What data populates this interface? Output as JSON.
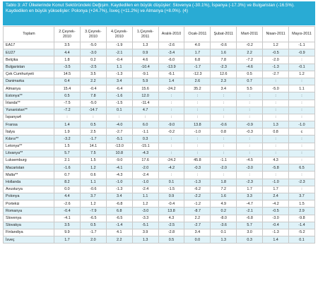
{
  "caption": "Tablo 3:  AT Ülkelerinde Konut Sektöründeki Değişim. Kaydedilen en büyük düşüşler: Slovenya (-30.1%), İspanya (-17.3%) ve Bulgaristan (-16.5%). Kaydedilen en büyük yükselişler: Polonya (+24.7%), İsveç (+11.2%) ve Almanya (+8.0%). (4)",
  "headers": [
    "Toplam",
    "2.Çeyrek-2010",
    "3.Çeyrek-2010",
    "4.Çeyrek-2010",
    "1.Çeyrek-2011",
    "Aralık-2010",
    "Ocak-2011",
    "Şubat-2011",
    "Mart-2011",
    "Nisan-2011",
    "Mayıs-2011"
  ],
  "rows": [
    [
      "EA17",
      "3.5",
      "-5.0",
      "-1.9",
      "1.3",
      "-2.6",
      "4.0",
      "-0.6",
      "-0.2",
      "1.2",
      "-1.1"
    ],
    [
      "EU27",
      "4.4",
      "-3.0",
      "-2.1",
      "0.9",
      "-3.4",
      "1.7",
      "1.6",
      "2.2",
      "-0.5",
      "-0.9"
    ],
    [
      "Belçika",
      "1.8",
      "0.2",
      "-0.4",
      "4.6",
      "-6.0",
      "6.8",
      "7.8",
      "-7.2",
      "-2.0",
      ":"
    ],
    [
      "Bulgaristan",
      "-3.5",
      "-2.5",
      "1.1",
      "-10.4",
      "-13.9",
      "-1.7",
      "-2.3",
      "-4.6",
      "-1.3",
      "-0.1"
    ],
    [
      "Çek Cumhuriyeti",
      "14.5",
      "3.5",
      "-1.3",
      "-9.1",
      "-6.1",
      "-12.3",
      "12.6",
      "0.5",
      "-2.7",
      "1.2"
    ],
    [
      "Danimarka",
      "0.4",
      "2.2",
      "3.4",
      "5.9",
      "1.4",
      "2.6",
      "2.3",
      "0.7",
      ":",
      ":"
    ],
    [
      "Almanya",
      "15.4",
      "-0.4",
      "-6.4",
      "15.6",
      "-24.2",
      "35.2",
      "3.4",
      "5.5",
      "-5.0",
      "1.1"
    ],
    [
      "Estonya**",
      "0.5",
      "7.8",
      "-1.6",
      "12.0",
      ":",
      ":",
      ":",
      ":",
      ":",
      ":"
    ],
    [
      "İrlanda**",
      "-7.5",
      "-5.0",
      "-1.5",
      "-11.4",
      ":",
      ":",
      ":",
      ":",
      ":",
      ":"
    ],
    [
      "Yunanistan**",
      "-7.2",
      "-14.7",
      "0.1",
      "4.7",
      ":",
      ":",
      ":",
      ":",
      ":",
      ":"
    ],
    [
      "İspanya4",
      ":",
      ":",
      ":",
      ":",
      ":",
      ":",
      ":",
      ":",
      ":",
      ":"
    ],
    [
      "Fransa",
      "1.4",
      "0.5",
      "-4.0",
      "6.0",
      "-9.0",
      "13.8",
      "-0.6",
      "-0.9",
      "1.3",
      "-1.0"
    ],
    [
      "İtalya",
      "1.9",
      "2.5",
      "-2.7",
      "-1.1",
      "-0.2",
      "-1.0",
      "0.8",
      "-0.3",
      "0.8",
      "c"
    ],
    [
      "Kıbrıs**",
      "-3.2",
      "-1.7",
      "-5.1",
      "0.3",
      ":",
      ":",
      ":",
      ":",
      ":",
      ":"
    ],
    [
      "Letonya**",
      "1.5",
      "14.1",
      "-13.0",
      "-15.1",
      ":",
      ":",
      ":",
      ":",
      ":",
      ":"
    ],
    [
      "Litvanya**",
      "5.7",
      "7.5",
      "10.8",
      "-4.3",
      ":",
      ":",
      ":",
      ":",
      ":",
      ":"
    ],
    [
      "Luksemburg",
      "2.1",
      "1.5",
      "-9.0",
      "17.6",
      "-24.2",
      "45.8",
      "-1.1",
      "-4.5",
      "4.3",
      ":"
    ],
    [
      "Macaristan",
      "-1.6",
      "1.2",
      "-4.1",
      "-2.0",
      "-4.2",
      "-0.3",
      "-2.0",
      "-3.0",
      "-5.8",
      "6.5"
    ],
    [
      "Malta**",
      "0.7",
      "0.6",
      "-4.3",
      "-2.4",
      ":",
      ":",
      ":",
      ":",
      ":",
      ":"
    ],
    [
      "Hollanda",
      "8.2",
      "1.1",
      "-1.0",
      "-1.0",
      "0.1",
      "-1.3",
      "1.8",
      "-2.3",
      "-1.0",
      "-2.3"
    ],
    [
      "Avusturya",
      "0.0",
      "-0.6",
      "-1.3",
      "-2.4",
      "-1.5",
      "-6.2",
      "7.2",
      "1.7",
      "1.7",
      ":"
    ],
    [
      "Polonya",
      "4.4",
      "3.7",
      "3.4",
      "1.1",
      "0.9",
      "-2.2",
      "1.6",
      "3.3",
      "2.4",
      "3.7"
    ],
    [
      "Portekiz",
      "-2.6",
      "1.2",
      "-6.8",
      "1.2",
      "-0.4",
      "-1.2",
      "4.9",
      "-4.7",
      "-4.2",
      "1.5"
    ],
    [
      "Romanya",
      "-0.4",
      "-7.9",
      "6.8",
      "-3.0",
      "13.8",
      "-8.7",
      "0.2",
      "-2.1",
      "-0.5",
      "2.9"
    ],
    [
      "Slovenya",
      "-4.1",
      "-6.5",
      "-6.5",
      "-3.3",
      "4.3",
      "2.2",
      "-8.0",
      "-6.8",
      "-3.0",
      "-9.8"
    ],
    [
      "Slovakya",
      "3.5",
      "0.5",
      "-1.4",
      "-5.1",
      "-2.5",
      "-2.7",
      "-3.6",
      "5.7",
      "-0.4",
      "-1.4"
    ],
    [
      "Finlandiya",
      "9.9",
      "-1.7",
      "4.1",
      "3.9",
      "-2.8",
      "3.4",
      "0.1",
      "3.0",
      "-1.3",
      "-5.2"
    ],
    [
      "İsveç",
      "1.7",
      "2.0",
      "2.2",
      "1.3",
      "0.5",
      "0.0",
      "1.3",
      "0.3",
      "1.4",
      "0.1"
    ]
  ]
}
